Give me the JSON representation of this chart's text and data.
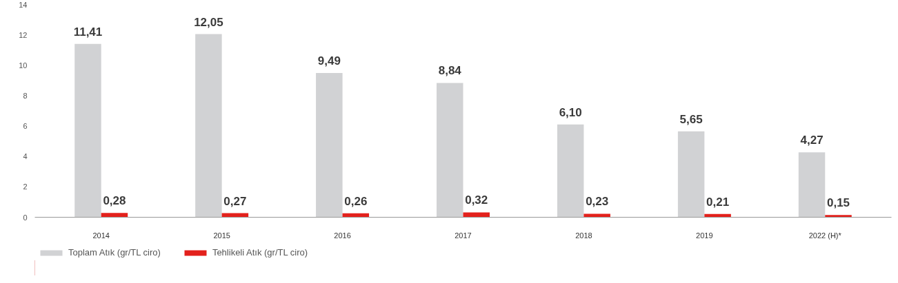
{
  "chart_data": {
    "type": "bar",
    "categories": [
      "2014",
      "2015",
      "2016",
      "2017",
      "2018",
      "2019",
      "2022 (H)*"
    ],
    "series": [
      {
        "name": "Toplam Atık (gr/TL ciro)",
        "color": "#d1d2d4",
        "values": [
          11.41,
          12.05,
          9.49,
          8.84,
          6.1,
          5.65,
          4.27
        ],
        "value_labels": [
          "11,41",
          "12,05",
          "9,49",
          "8,84",
          "6,10",
          "5,65",
          "4,27"
        ]
      },
      {
        "name": "Tehlikeli Atık (gr/TL ciro)",
        "color": "#e3211c",
        "values": [
          0.28,
          0.27,
          0.26,
          0.32,
          0.23,
          0.21,
          0.15
        ],
        "value_labels": [
          "0,28",
          "0,27",
          "0,26",
          "0,32",
          "0,23",
          "0,21",
          "0,15"
        ]
      }
    ],
    "ylim": [
      0,
      14
    ],
    "yticks": [
      0,
      2,
      4,
      6,
      8,
      10,
      12,
      14
    ],
    "grid": false,
    "legend": "bottom left"
  }
}
